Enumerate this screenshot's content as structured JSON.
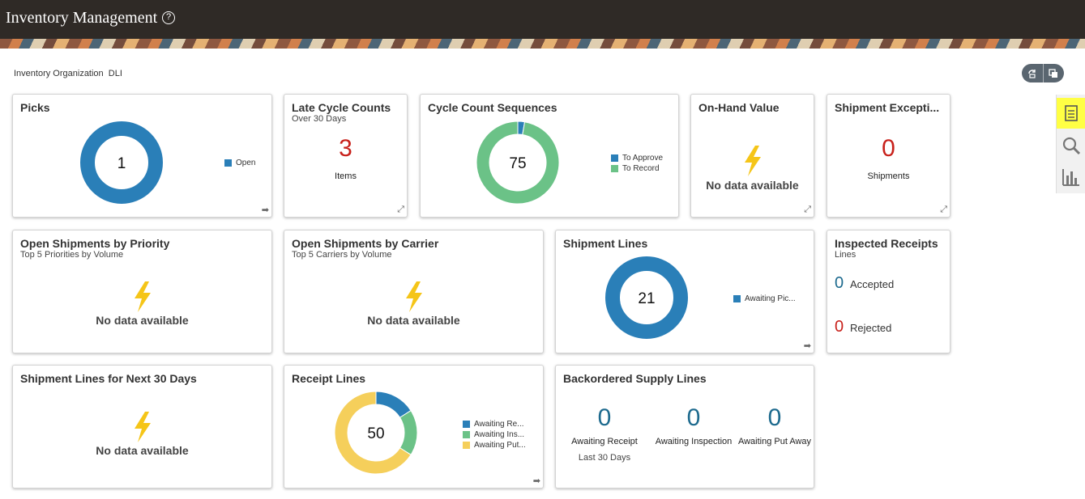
{
  "header": {
    "title": "Inventory Management",
    "help_glyph": "?"
  },
  "org": {
    "label": "Inventory Organization",
    "value": "DLI"
  },
  "toolbar": {
    "btn1_icon": "refresh-icon",
    "btn2_icon": "copy-icon"
  },
  "side_rail": [
    {
      "icon": "tasks-icon",
      "active": true
    },
    {
      "icon": "search-icon",
      "active": false
    },
    {
      "icon": "bar-chart-icon",
      "active": false
    }
  ],
  "colors": {
    "blue": "#2a7fb8",
    "green": "#6bc287",
    "yellow": "#f5cf5b",
    "red": "#c8211b",
    "teal": "#1d6a8e"
  },
  "cards": {
    "picks": {
      "title": "Picks",
      "center": "1",
      "legend": [
        "Open"
      ]
    },
    "late_cycle": {
      "title": "Late Cycle Counts",
      "subtitle": "Over 30 Days",
      "value": "3",
      "caption": "Items"
    },
    "cycle_seq": {
      "title": "Cycle Count Sequences",
      "center": "75",
      "legend": [
        "To Approve",
        "To Record"
      ]
    },
    "onhand": {
      "title": "On-Hand Value",
      "nodata": "No data available"
    },
    "shipment_exc": {
      "title": "Shipment Excepti...",
      "value": "0",
      "caption": "Shipments"
    },
    "open_priority": {
      "title": "Open Shipments by Priority",
      "subtitle": "Top 5 Priorities by Volume",
      "nodata": "No data available"
    },
    "open_carrier": {
      "title": "Open Shipments by Carrier",
      "subtitle": "Top 5 Carriers by Volume",
      "nodata": "No data available"
    },
    "shipment_lines": {
      "title": "Shipment Lines",
      "center": "21",
      "legend": [
        "Awaiting Pic..."
      ]
    },
    "inspected": {
      "title": "Inspected Receipts",
      "subtitle": "Lines",
      "accepted_value": "0",
      "accepted_label": "Accepted",
      "rejected_value": "0",
      "rejected_label": "Rejected"
    },
    "next30": {
      "title": "Shipment Lines for Next 30 Days",
      "nodata": "No data available"
    },
    "receipt_lines": {
      "title": "Receipt Lines",
      "center": "50",
      "legend": [
        "Awaiting Re...",
        "Awaiting Ins...",
        "Awaiting Put..."
      ]
    },
    "backordered": {
      "title": "Backordered Supply Lines",
      "items": [
        {
          "value": "0",
          "label": "Awaiting Receipt"
        },
        {
          "value": "0",
          "label": "Awaiting Inspection"
        },
        {
          "value": "0",
          "label": "Awaiting Put Away"
        }
      ],
      "footnote": "Last 30 Days"
    }
  },
  "chart_data": [
    {
      "type": "pie",
      "title": "Picks",
      "categories": [
        "Open"
      ],
      "values": [
        1
      ],
      "center_label": "1"
    },
    {
      "type": "pie",
      "title": "Cycle Count Sequences",
      "categories": [
        "To Approve",
        "To Record"
      ],
      "values": [
        2,
        73
      ],
      "center_label": "75"
    },
    {
      "type": "pie",
      "title": "Shipment Lines",
      "categories": [
        "Awaiting Pic..."
      ],
      "values": [
        21
      ],
      "center_label": "21"
    },
    {
      "type": "pie",
      "title": "Receipt Lines",
      "categories": [
        "Awaiting Re...",
        "Awaiting Ins...",
        "Awaiting Put..."
      ],
      "values": [
        8,
        9,
        33
      ],
      "center_label": "50"
    }
  ]
}
